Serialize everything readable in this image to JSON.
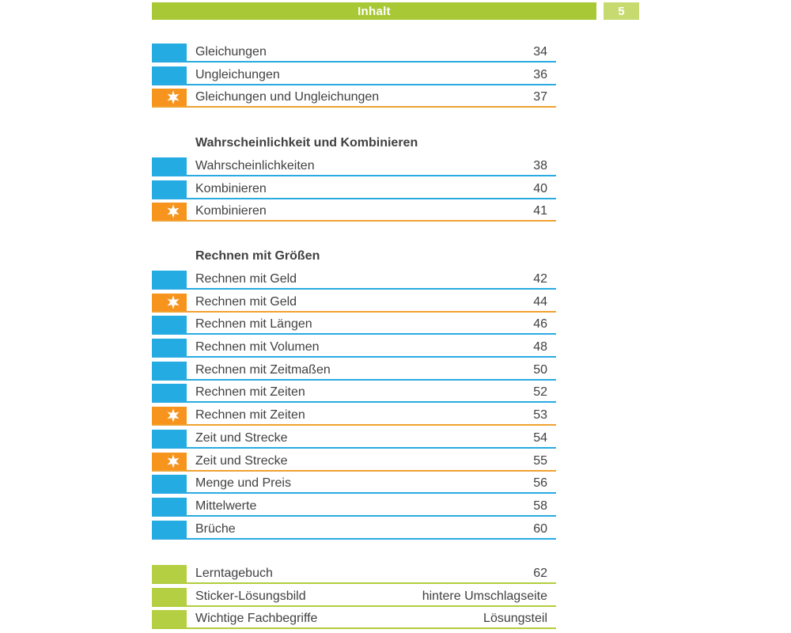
{
  "header": {
    "title": "Inhalt",
    "page_number": "5"
  },
  "colors": {
    "header_bar_green": "#a9c836",
    "page_badge_green": "#c6da70",
    "blue_marker": "#24ace2",
    "blue_rule": "#29abe2",
    "orange_marker": "#f7941e",
    "orange_rule": "#f0a232",
    "green_marker": "#b4cf42",
    "green_rule": "#b2cd3e",
    "text": "#414042",
    "star": "#ffffff"
  },
  "icons": {
    "star_marker": "six-pointed-star-icon",
    "blue_marker": "blue-square-marker",
    "green_marker": "green-square-marker"
  },
  "toc": {
    "groups": [
      {
        "heading": null,
        "rows": [
          {
            "type": "blue",
            "label": "Gleichungen",
            "page": "34"
          },
          {
            "type": "blue",
            "label": "Ungleichungen",
            "page": "36"
          },
          {
            "type": "orange-star",
            "label": "Gleichungen und Ungleichungen",
            "page": "37"
          }
        ]
      },
      {
        "heading": "Wahrscheinlichkeit und Kombinieren",
        "rows": [
          {
            "type": "blue",
            "label": "Wahrscheinlichkeiten",
            "page": "38"
          },
          {
            "type": "blue",
            "label": "Kombinieren",
            "page": "40"
          },
          {
            "type": "orange-star",
            "label": "Kombinieren",
            "page": "41"
          }
        ]
      },
      {
        "heading": "Rechnen mit Größen",
        "rows": [
          {
            "type": "blue",
            "label": "Rechnen mit Geld",
            "page": "42"
          },
          {
            "type": "orange-star",
            "label": "Rechnen mit Geld",
            "page": "44"
          },
          {
            "type": "blue",
            "label": "Rechnen mit Längen",
            "page": "46"
          },
          {
            "type": "blue",
            "label": "Rechnen mit Volumen",
            "page": "48"
          },
          {
            "type": "blue",
            "label": "Rechnen mit Zeitmaßen",
            "page": "50"
          },
          {
            "type": "blue",
            "label": "Rechnen mit Zeiten",
            "page": "52"
          },
          {
            "type": "orange-star",
            "label": "Rechnen mit Zeiten",
            "page": "53"
          },
          {
            "type": "blue",
            "label": "Zeit und Strecke",
            "page": "54"
          },
          {
            "type": "orange-star",
            "label": "Zeit und Strecke",
            "page": "55"
          },
          {
            "type": "blue",
            "label": "Menge und Preis",
            "page": "56"
          },
          {
            "type": "blue",
            "label": "Mittelwerte",
            "page": "58"
          },
          {
            "type": "blue",
            "label": "Brüche",
            "page": "60"
          }
        ]
      },
      {
        "heading": null,
        "rows": [
          {
            "type": "green",
            "label": "Lerntagebuch",
            "page": "62"
          },
          {
            "type": "green",
            "label": "Sticker-Lösungsbild",
            "page": "hintere Umschlagseite"
          },
          {
            "type": "green",
            "label": "Wichtige Fachbegriffe",
            "page": "Lösungsteil"
          }
        ]
      }
    ]
  }
}
